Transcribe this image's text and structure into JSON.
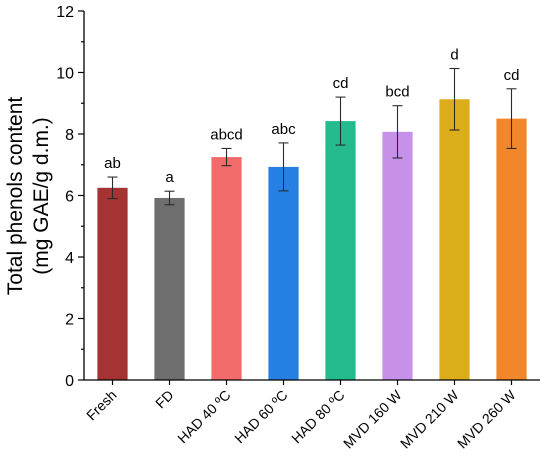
{
  "chart_data": {
    "type": "bar",
    "title": "",
    "xlabel": "",
    "ylabel_line1": "Total phenols content",
    "ylabel_line2": "(mg GAE/g d.m.)",
    "ylim": [
      0,
      12
    ],
    "yticks": [
      0,
      2,
      4,
      6,
      8,
      10,
      12
    ],
    "ytick_labels": [
      "0",
      "2",
      "4",
      "6",
      "8",
      "10",
      "12"
    ],
    "grid": false,
    "categories": [
      "Fresh",
      "FD",
      "HAD 40 ºC",
      "HAD 60 ºC",
      "HAD 80 ºC",
      "MVD 160 W",
      "MVD 210 W",
      "MVD 260 W"
    ],
    "values": [
      6.25,
      5.92,
      7.25,
      6.93,
      8.42,
      8.07,
      9.13,
      8.5
    ],
    "errors": [
      0.35,
      0.22,
      0.28,
      0.78,
      0.78,
      0.85,
      1.0,
      0.97
    ],
    "significance": [
      "ab",
      "a",
      "abcd",
      "abc",
      "cd",
      "bcd",
      "d",
      "cd"
    ],
    "colors": [
      "#a02828",
      "#666666",
      "#f26464",
      "#1a78e0",
      "#18b889",
      "#c48ae8",
      "#d9a90e",
      "#f08020"
    ]
  }
}
